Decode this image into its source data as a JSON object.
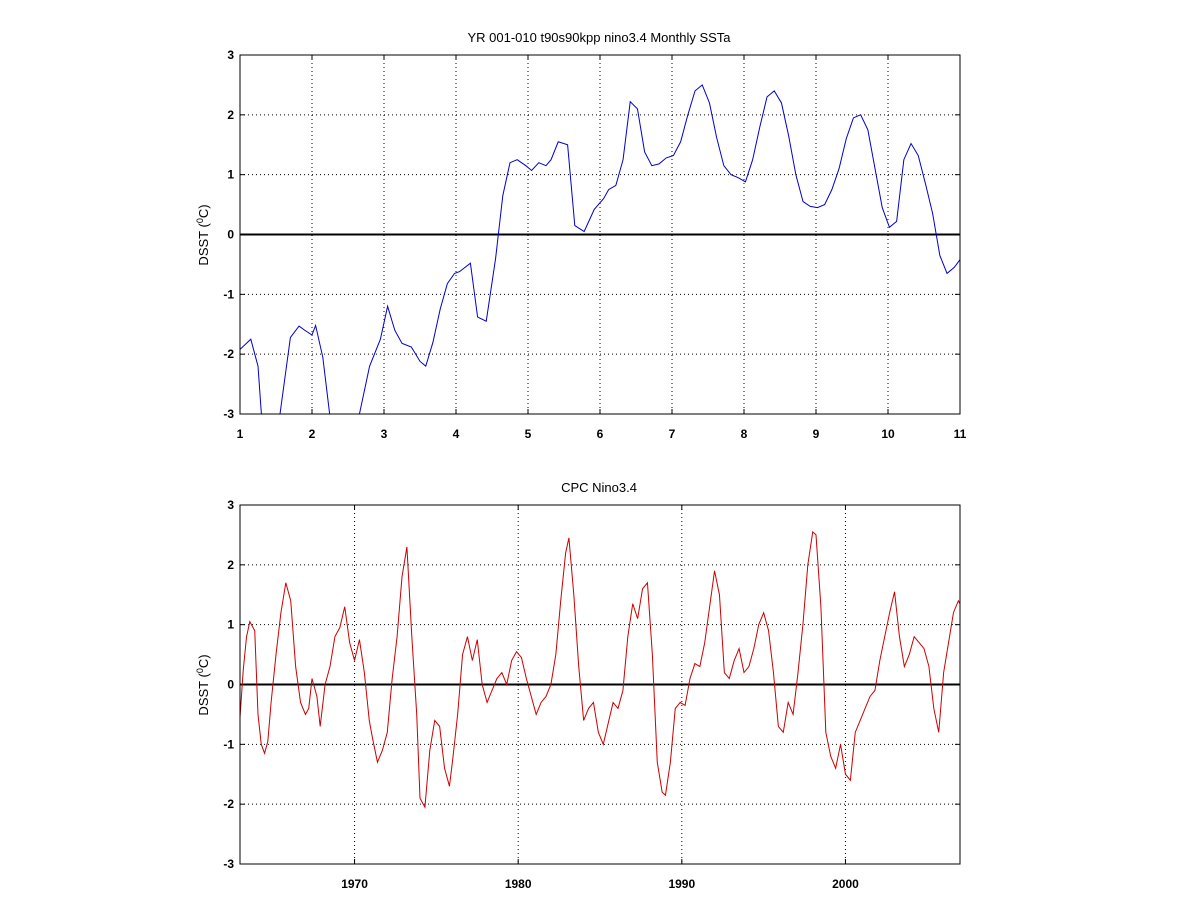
{
  "chart_data": [
    {
      "type": "line",
      "title": "YR 001-010 t90s90kpp nino3.4 Monthly SSTa",
      "ylabel": "DSST (",
      "ylabel_sup": "0",
      "ylabel_tail": "C)",
      "xlim": [
        1,
        11
      ],
      "ylim": [
        -3,
        3
      ],
      "xticks": [
        1,
        2,
        3,
        4,
        5,
        6,
        7,
        8,
        9,
        10,
        11
      ],
      "xtick_labels": [
        "1",
        "2",
        "3",
        "4",
        "5",
        "6",
        "7",
        "8",
        "9",
        "10",
        "11"
      ],
      "yticks": [
        -3,
        -2,
        -1,
        0,
        1,
        2,
        3
      ],
      "ytick_labels": [
        "-3",
        "-2",
        "-1",
        "0",
        "1",
        "2",
        "3"
      ],
      "grid": true,
      "zero_line": true,
      "color": "#0000cc",
      "series": [
        {
          "x": [
            1.0,
            1.15,
            1.25,
            1.3,
            1.55,
            1.7,
            1.82,
            1.9,
            2.0,
            2.05,
            2.15,
            2.25,
            2.65,
            2.8,
            2.95,
            3.05,
            3.15,
            3.25,
            3.38,
            3.5,
            3.58,
            3.68,
            3.78,
            3.88,
            3.98,
            4.05,
            4.2,
            4.3,
            4.42,
            4.55,
            4.65,
            4.75,
            4.85,
            4.97,
            5.05,
            5.15,
            5.25,
            5.32,
            5.42,
            5.55,
            5.65,
            5.78,
            5.92,
            6.05,
            6.12,
            6.22,
            6.32,
            6.42,
            6.52,
            6.62,
            6.72,
            6.82,
            6.92,
            7.02,
            7.12,
            7.22,
            7.32,
            7.42,
            7.52,
            7.62,
            7.72,
            7.82,
            7.92,
            8.02,
            8.12,
            8.22,
            8.32,
            8.42,
            8.52,
            8.62,
            8.72,
            8.82,
            8.92,
            9.02,
            9.12,
            9.22,
            9.32,
            9.42,
            9.52,
            9.62,
            9.72,
            9.82,
            9.92,
            10.02,
            10.12,
            10.22,
            10.32,
            10.42,
            10.52,
            10.62,
            10.72,
            10.82,
            10.92,
            11.0
          ],
          "y": [
            -1.92,
            -1.75,
            -2.2,
            -3.05,
            -3.05,
            -1.72,
            -1.53,
            -1.6,
            -1.68,
            -1.52,
            -2.05,
            -3.05,
            -3.05,
            -2.2,
            -1.75,
            -1.2,
            -1.6,
            -1.82,
            -1.88,
            -2.12,
            -2.2,
            -1.8,
            -1.25,
            -0.82,
            -0.65,
            -0.62,
            -0.48,
            -1.38,
            -1.45,
            -0.4,
            0.65,
            1.2,
            1.25,
            1.15,
            1.07,
            1.2,
            1.15,
            1.25,
            1.55,
            1.5,
            0.15,
            0.05,
            0.42,
            0.6,
            0.75,
            0.82,
            1.25,
            2.22,
            2.1,
            1.38,
            1.15,
            1.18,
            1.28,
            1.32,
            1.55,
            2.0,
            2.4,
            2.5,
            2.2,
            1.62,
            1.15,
            1.0,
            0.95,
            0.88,
            1.25,
            1.8,
            2.3,
            2.4,
            2.2,
            1.65,
            1.0,
            0.55,
            0.47,
            0.45,
            0.5,
            0.75,
            1.1,
            1.6,
            1.95,
            2.0,
            1.75,
            1.1,
            0.45,
            0.12,
            0.22,
            1.25,
            1.52,
            1.32,
            0.85,
            0.35,
            -0.35,
            -0.65,
            -0.55,
            -0.42
          ]
        }
      ]
    },
    {
      "type": "line",
      "title": "CPC Nino3.4",
      "ylabel": "DSST (",
      "ylabel_sup": "0",
      "ylabel_tail": "C)",
      "xlim": [
        1963,
        2007
      ],
      "ylim": [
        -3,
        3
      ],
      "xticks": [
        1970,
        1980,
        1990,
        2000
      ],
      "xtick_labels": [
        "1970",
        "1980",
        "1990",
        "2000"
      ],
      "yticks": [
        -3,
        -2,
        -1,
        0,
        1,
        2,
        3
      ],
      "ytick_labels": [
        "-3",
        "-2",
        "-1",
        "0",
        "1",
        "2",
        "3"
      ],
      "grid": true,
      "zero_line": true,
      "color": "#cc0000",
      "series": [
        {
          "x": [
            1963.0,
            1963.2,
            1963.4,
            1963.6,
            1963.9,
            1964.1,
            1964.3,
            1964.5,
            1964.7,
            1964.9,
            1965.2,
            1965.5,
            1965.8,
            1966.1,
            1966.4,
            1966.7,
            1967.0,
            1967.2,
            1967.4,
            1967.7,
            1967.9,
            1968.2,
            1968.5,
            1968.8,
            1969.1,
            1969.4,
            1969.7,
            1970.0,
            1970.3,
            1970.6,
            1970.9,
            1971.1,
            1971.4,
            1971.7,
            1972.0,
            1972.3,
            1972.6,
            1972.9,
            1973.2,
            1973.5,
            1973.8,
            1974.0,
            1974.3,
            1974.6,
            1974.9,
            1975.2,
            1975.5,
            1975.8,
            1976.0,
            1976.3,
            1976.6,
            1976.9,
            1977.2,
            1977.5,
            1977.8,
            1978.1,
            1978.4,
            1978.7,
            1979.0,
            1979.3,
            1979.6,
            1979.9,
            1980.2,
            1980.5,
            1980.8,
            1981.1,
            1981.4,
            1981.7,
            1982.0,
            1982.3,
            1982.6,
            1982.9,
            1983.1,
            1983.4,
            1983.7,
            1984.0,
            1984.3,
            1984.6,
            1984.9,
            1985.2,
            1985.5,
            1985.8,
            1986.1,
            1986.4,
            1986.7,
            1987.0,
            1987.3,
            1987.6,
            1987.9,
            1988.2,
            1988.5,
            1988.8,
            1989.0,
            1989.3,
            1989.6,
            1989.9,
            1990.2,
            1990.5,
            1990.8,
            1991.1,
            1991.4,
            1991.7,
            1992.0,
            1992.3,
            1992.6,
            1992.9,
            1993.2,
            1993.5,
            1993.8,
            1994.1,
            1994.4,
            1994.7,
            1995.0,
            1995.3,
            1995.6,
            1995.9,
            1996.2,
            1996.5,
            1996.8,
            1997.1,
            1997.4,
            1997.7,
            1998.0,
            1998.2,
            1998.5,
            1998.8,
            1999.1,
            1999.4,
            1999.7,
            2000.0,
            2000.3,
            2000.6,
            2000.9,
            2001.2,
            2001.5,
            2001.8,
            2002.1,
            2002.4,
            2002.7,
            2003.0,
            2003.3,
            2003.6,
            2003.9,
            2004.2,
            2004.5,
            2004.8,
            2005.1,
            2005.4,
            2005.7,
            2006.0,
            2006.3,
            2006.6,
            2006.9,
            2007.0
          ],
          "y": [
            -0.55,
            0.25,
            0.8,
            1.05,
            0.9,
            -0.5,
            -1.0,
            -1.15,
            -0.95,
            -0.3,
            0.5,
            1.2,
            1.7,
            1.4,
            0.3,
            -0.3,
            -0.5,
            -0.4,
            0.1,
            -0.2,
            -0.7,
            0.0,
            0.3,
            0.8,
            0.95,
            1.3,
            0.7,
            0.4,
            0.75,
            0.2,
            -0.6,
            -0.9,
            -1.3,
            -1.1,
            -0.8,
            0.1,
            0.8,
            1.8,
            2.3,
            0.8,
            -0.5,
            -1.9,
            -2.05,
            -1.1,
            -0.6,
            -0.7,
            -1.4,
            -1.7,
            -1.25,
            -0.5,
            0.5,
            0.8,
            0.4,
            0.75,
            0.0,
            -0.3,
            -0.1,
            0.1,
            0.2,
            0.0,
            0.4,
            0.55,
            0.45,
            0.1,
            -0.2,
            -0.5,
            -0.3,
            -0.2,
            0.0,
            0.5,
            1.4,
            2.2,
            2.45,
            1.5,
            0.3,
            -0.6,
            -0.4,
            -0.3,
            -0.8,
            -1.0,
            -0.65,
            -0.3,
            -0.4,
            -0.1,
            0.8,
            1.35,
            1.1,
            1.6,
            1.7,
            0.5,
            -1.3,
            -1.8,
            -1.85,
            -1.3,
            -0.4,
            -0.3,
            -0.35,
            0.1,
            0.35,
            0.3,
            0.7,
            1.3,
            1.9,
            1.5,
            0.2,
            0.1,
            0.4,
            0.6,
            0.2,
            0.3,
            0.6,
            1.0,
            1.2,
            0.9,
            0.2,
            -0.7,
            -0.8,
            -0.3,
            -0.5,
            0.2,
            1.0,
            2.0,
            2.55,
            2.5,
            1.3,
            -0.8,
            -1.2,
            -1.4,
            -1.0,
            -1.5,
            -1.6,
            -0.8,
            -0.6,
            -0.4,
            -0.2,
            -0.1,
            0.4,
            0.8,
            1.2,
            1.55,
            0.8,
            0.3,
            0.5,
            0.8,
            0.7,
            0.6,
            0.3,
            -0.4,
            -0.8,
            0.2,
            0.7,
            1.2,
            1.4,
            1.35
          ]
        }
      ]
    }
  ]
}
